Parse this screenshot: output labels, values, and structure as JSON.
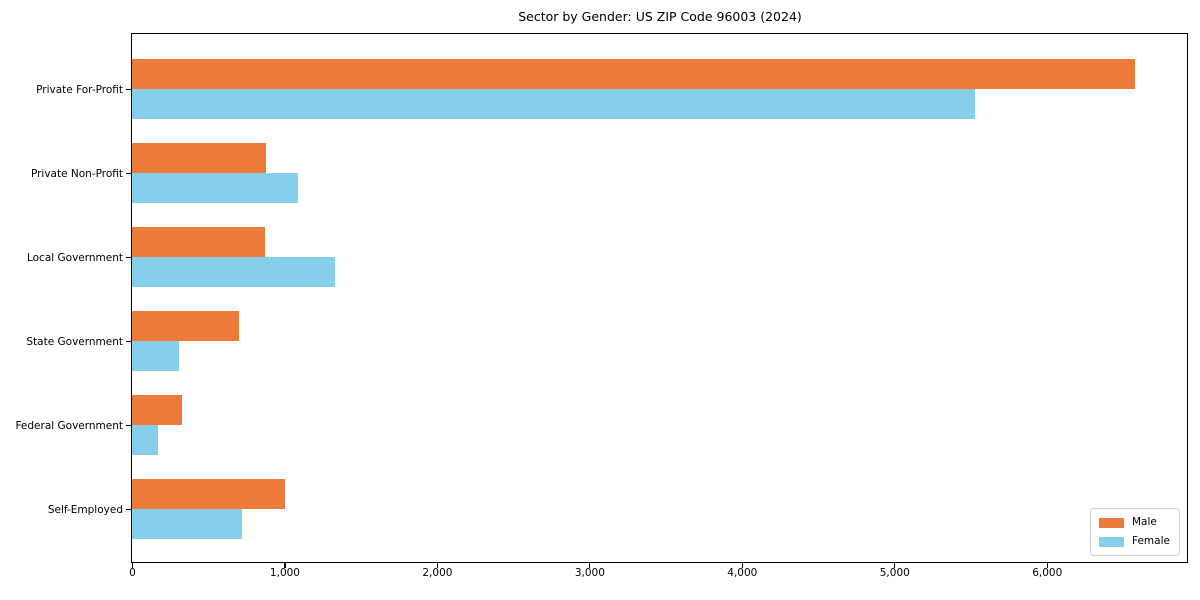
{
  "title": "Sector by Gender: US ZIP Code 96003 (2024)",
  "chart_data": {
    "type": "bar",
    "orientation": "horizontal",
    "title": "Sector by Gender: US ZIP Code 96003 (2024)",
    "xlabel": "",
    "ylabel": "",
    "categories": [
      "Private For-Profit",
      "Private Non-Profit",
      "Local Government",
      "State Government",
      "Federal Government",
      "Self-Employed"
    ],
    "series": [
      {
        "name": "Male",
        "color": "#EB7A3B",
        "values": [
          6580,
          880,
          870,
          700,
          330,
          1000
        ]
      },
      {
        "name": "Female",
        "color": "#87CEEB",
        "values": [
          5530,
          1090,
          1330,
          310,
          170,
          720
        ]
      }
    ],
    "xlim": [
      0,
      6920
    ],
    "xticks": [
      0,
      1000,
      2000,
      3000,
      4000,
      5000,
      6000
    ],
    "xtick_labels": [
      "0",
      "1,000",
      "2,000",
      "3,000",
      "4,000",
      "5,000",
      "6,000"
    ],
    "grid": false,
    "legend_position": "lower right",
    "legend_title": ""
  }
}
